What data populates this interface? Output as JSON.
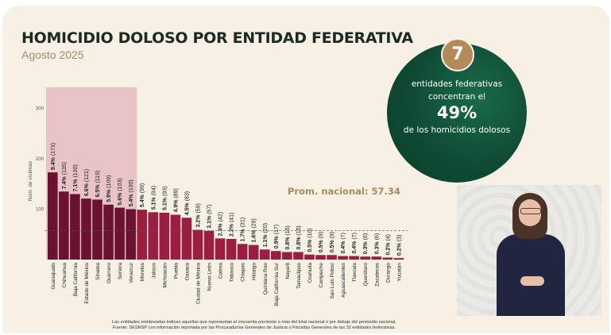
{
  "header": {
    "title": "HOMICIDIO DOLOSO POR ENTIDAD FEDERATIVA",
    "subtitle": "Agosto 2025"
  },
  "highlight": {
    "count": "7",
    "line1": "entidades federativas",
    "line2": "concentran el",
    "percent": "49%",
    "line3": "de los homicidios dolosos",
    "colors": {
      "circle": "#0f4a34",
      "badge": "#b58a5a"
    }
  },
  "average_label": "Prom. nacional: 57.34",
  "footnotes": [
    "Las entidades sombreadas indican aquellas que representan el cincuenta porciento o más del total nacional o por debajo del promedio nacional.",
    "Fuente: SESNSP con información reportada por las Procuradurías Generales de Justicia o Fiscalías Generales de las 32 entidades federativas."
  ],
  "video": {
    "icon": "sign-language-interpreter"
  },
  "chart_data": {
    "type": "bar",
    "title": "HOMICIDIO DOLOSO POR ENTIDAD FEDERATIVA",
    "subtitle": "Agosto 2025",
    "xlabel": "",
    "ylabel": "Núm. de víctimas",
    "ylim": [
      0,
      330
    ],
    "yticks": [
      100,
      200,
      300
    ],
    "grid": false,
    "average": 57.34,
    "highlighted_count": 8,
    "colors": {
      "highlight": "#6a1230",
      "normal": "#9b1d40",
      "shade": "#e8c4c6"
    },
    "categories": [
      "Guanajuato",
      "Chihuahua",
      "Baja California",
      "Estado de México",
      "Sinaloa",
      "Guerrero",
      "Sonora",
      "Veracruz",
      "Morelos",
      "Jalisco",
      "Michoacán",
      "Puebla",
      "Oaxaca",
      "Ciudad de México",
      "Nuevo León",
      "Colima",
      "Tabasco",
      "Chiapas",
      "Hidalgo",
      "Quintana Roo",
      "Baja California Sur",
      "Nayarit",
      "Tamaulipas",
      "Coahuila",
      "Campeche",
      "San Luis Potosí",
      "Aguascalientes",
      "Tlaxcala",
      "Querétaro",
      "Zacatecas",
      "Durango",
      "Yucatán"
    ],
    "values": [
      173,
      135,
      130,
      121,
      119,
      109,
      103,
      100,
      99,
      94,
      93,
      89,
      83,
      59,
      57,
      42,
      41,
      31,
      29,
      20,
      17,
      15,
      15,
      10,
      9,
      9,
      7,
      7,
      6,
      6,
      4,
      3
    ],
    "percents": [
      "9.4%",
      "7.4%",
      "7.1%",
      "6.6%",
      "6.5%",
      "5.9%",
      "5.6%",
      "5.4%",
      "5.4%",
      "5.1%",
      "5.1%",
      "4.9%",
      "4.5%",
      "3.2%",
      "3.1%",
      "2.3%",
      "2.2%",
      "1.7%",
      "1.6%",
      "1.1%",
      "0.9%",
      "0.8%",
      "0.8%",
      "0.5%",
      "0.5%",
      "0.5%",
      "0.4%",
      "0.4%",
      "0.3%",
      "0.3%",
      "0.2%",
      "0.2%"
    ]
  }
}
